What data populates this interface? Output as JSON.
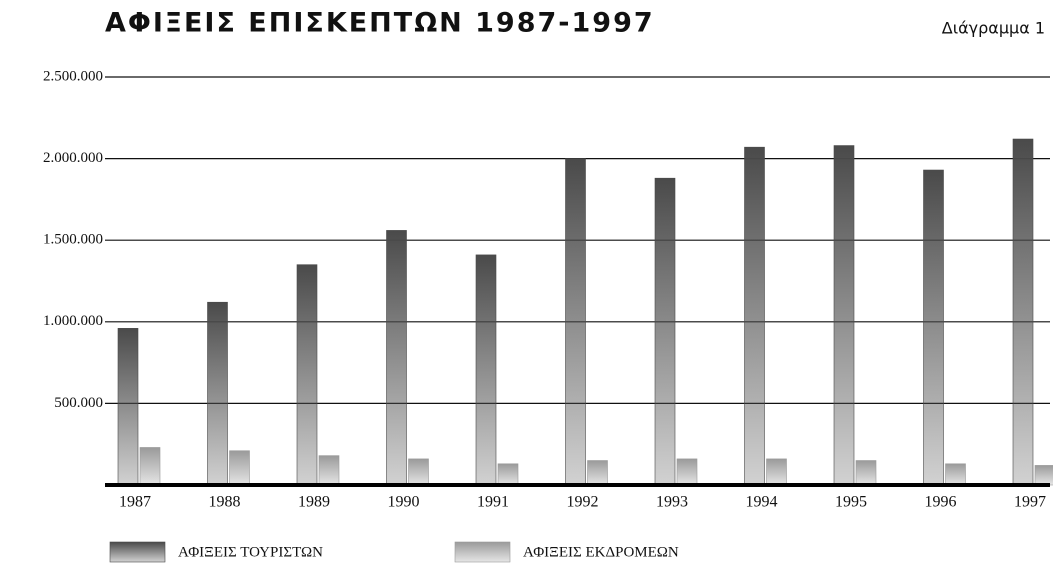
{
  "chart_data": {
    "type": "bar",
    "title": "ΑΦΙΞΕΙΣ ΕΠΙΣΚΕΠΤΩΝ 1987-1997",
    "annotation": "Διάγραμμα 1",
    "categories": [
      "1987",
      "1988",
      "1989",
      "1990",
      "1991",
      "1992",
      "1993",
      "1994",
      "1995",
      "1996",
      "1997"
    ],
    "series": [
      {
        "name": "ΑΦΙΞΕΙΣ ΤΟΥΡΙΣΤΩΝ",
        "color": "#4a4a4a",
        "values": [
          960000,
          1120000,
          1350000,
          1560000,
          1410000,
          2000000,
          1880000,
          2070000,
          2080000,
          1930000,
          2120000
        ]
      },
      {
        "name": "ΑΦΙΞΕΙΣ ΕΚΔΡΟΜΕΩΝ",
        "color": "#9a9a9a",
        "values": [
          230000,
          210000,
          180000,
          160000,
          130000,
          150000,
          160000,
          160000,
          150000,
          130000,
          120000
        ]
      }
    ],
    "ylim": [
      0,
      2500000
    ],
    "yticks": [
      {
        "value": 500000,
        "label": "500.000"
      },
      {
        "value": 1000000,
        "label": "1.000.000"
      },
      {
        "value": 1500000,
        "label": "1.500.000"
      },
      {
        "value": 2000000,
        "label": "2.000.000"
      },
      {
        "value": 2500000,
        "label": "2.500.000"
      }
    ],
    "grid": true,
    "legend": "bottom"
  }
}
